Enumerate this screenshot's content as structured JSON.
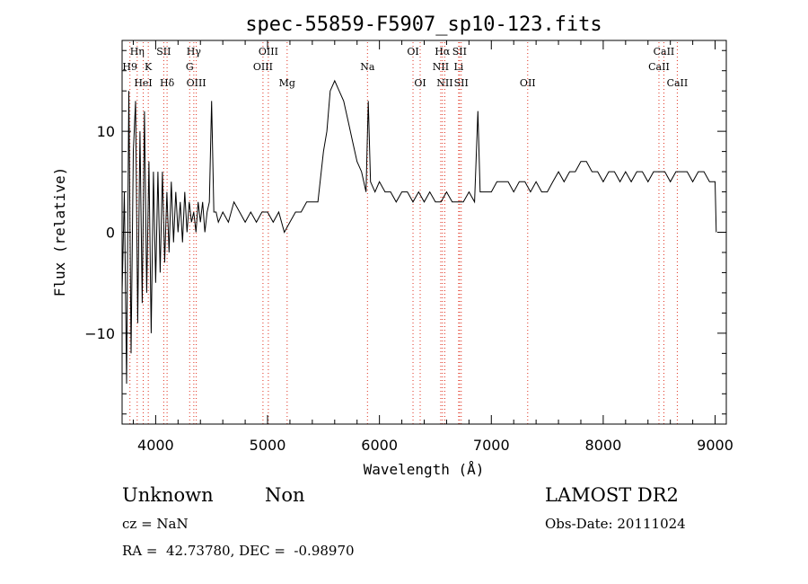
{
  "chart_data": {
    "type": "line",
    "title": "spec-55859-F5907_sp10-123.fits",
    "xlabel": "Wavelength (Å)",
    "ylabel": "Flux (relative)",
    "xlim": [
      3700,
      9100
    ],
    "ylim": [
      -19,
      19
    ],
    "xticks": [
      4000,
      5000,
      6000,
      7000,
      8000,
      9000
    ],
    "yticks": [
      -10,
      0,
      10
    ],
    "grid": false,
    "line_color": "#000000",
    "marker_color": "#e0301e",
    "series": [
      {
        "x": [
          3700,
          3720,
          3740,
          3760,
          3780,
          3800,
          3820,
          3840,
          3860,
          3880,
          3900,
          3920,
          3940,
          3960,
          3980,
          4000,
          4020,
          4040,
          4060,
          4080,
          4100,
          4120,
          4140,
          4160,
          4180,
          4200,
          4220,
          4240,
          4260,
          4280,
          4300,
          4320,
          4340,
          4360,
          4380,
          4400,
          4420,
          4440,
          4460,
          4480,
          4500,
          4520,
          4540,
          4560,
          4600,
          4650,
          4700,
          4750,
          4800,
          4850,
          4900,
          4950,
          5000,
          5050,
          5100,
          5150,
          5200,
          5250,
          5300,
          5350,
          5400,
          5450,
          5500,
          5530,
          5560,
          5600,
          5640,
          5680,
          5720,
          5760,
          5800,
          5840,
          5880,
          5900,
          5920,
          5960,
          6000,
          6050,
          6100,
          6150,
          6200,
          6250,
          6300,
          6350,
          6400,
          6450,
          6500,
          6550,
          6600,
          6650,
          6700,
          6750,
          6800,
          6850,
          6880,
          6900,
          6950,
          7000,
          7050,
          7100,
          7150,
          7200,
          7250,
          7300,
          7350,
          7400,
          7450,
          7500,
          7550,
          7600,
          7650,
          7700,
          7750,
          7800,
          7850,
          7900,
          7950,
          8000,
          8050,
          8100,
          8150,
          8200,
          8250,
          8300,
          8350,
          8400,
          8450,
          8500,
          8550,
          8600,
          8650,
          8700,
          8750,
          8800,
          8850,
          8900,
          8950,
          9000,
          9010
        ],
        "y": [
          -6,
          4,
          -15,
          14,
          -12,
          8,
          13,
          -9,
          10,
          -7,
          12,
          -6,
          7,
          -10,
          6,
          -5,
          6,
          -4,
          6,
          -3,
          4,
          -2,
          5,
          -1,
          4,
          0,
          3,
          -1,
          4,
          0,
          3,
          1,
          2,
          0,
          3,
          1,
          3,
          0,
          2,
          3,
          13,
          2,
          2,
          1,
          2,
          1,
          3,
          2,
          1,
          2,
          1,
          2,
          2,
          1,
          2,
          0,
          1,
          2,
          2,
          3,
          3,
          3,
          8,
          10,
          14,
          15,
          14,
          13,
          11,
          9,
          7,
          6,
          4,
          13,
          5,
          4,
          5,
          4,
          4,
          3,
          4,
          4,
          3,
          4,
          3,
          4,
          3,
          3,
          4,
          3,
          3,
          3,
          4,
          3,
          12,
          4,
          4,
          4,
          5,
          5,
          5,
          4,
          5,
          5,
          4,
          5,
          4,
          4,
          5,
          6,
          5,
          6,
          6,
          7,
          7,
          6,
          6,
          5,
          6,
          6,
          5,
          6,
          5,
          6,
          6,
          5,
          6,
          6,
          6,
          5,
          6,
          6,
          6,
          5,
          6,
          6,
          5,
          5,
          0
        ]
      }
    ],
    "lines": [
      {
        "label": "Hη",
        "wave": 3835,
        "row": 0
      },
      {
        "label": "H9",
        "wave": 3770,
        "row": 1
      },
      {
        "label": "HeI",
        "wave": 3889,
        "row": 2
      },
      {
        "label": "K",
        "wave": 3934,
        "row": 1
      },
      {
        "label": "SII",
        "wave": 4072,
        "row": 0
      },
      {
        "label": "Hδ",
        "wave": 4102,
        "row": 2
      },
      {
        "label": "Hγ",
        "wave": 4341,
        "row": 0
      },
      {
        "label": "G",
        "wave": 4304,
        "row": 1
      },
      {
        "label": "OIII",
        "wave": 4363,
        "row": 2
      },
      {
        "label": "OIII",
        "wave": 5007,
        "row": 0
      },
      {
        "label": "OIII",
        "wave": 4959,
        "row": 1
      },
      {
        "label": "Mg",
        "wave": 5175,
        "row": 2
      },
      {
        "label": "Na",
        "wave": 5893,
        "row": 1
      },
      {
        "label": "OI",
        "wave": 6300,
        "row": 0
      },
      {
        "label": "OI",
        "wave": 6364,
        "row": 2
      },
      {
        "label": "Hα",
        "wave": 6563,
        "row": 0
      },
      {
        "label": "NII",
        "wave": 6548,
        "row": 1
      },
      {
        "label": "NII",
        "wave": 6584,
        "row": 2
      },
      {
        "label": "SII",
        "wave": 6716,
        "row": 0
      },
      {
        "label": "Li",
        "wave": 6708,
        "row": 1
      },
      {
        "label": "SII",
        "wave": 6731,
        "row": 2
      },
      {
        "label": "OII",
        "wave": 7325,
        "row": 2
      },
      {
        "label": "CaII",
        "wave": 8542,
        "row": 0
      },
      {
        "label": "CaII",
        "wave": 8498,
        "row": 1
      },
      {
        "label": "CaII",
        "wave": 8662,
        "row": 2
      }
    ]
  },
  "footer": {
    "classification": "Unknown",
    "subclass": "Non",
    "cz": "cz = NaN",
    "coords": "RA =  42.73780, DEC =  -0.98970",
    "survey": "LAMOST DR2",
    "obsdate": "Obs-Date: 20111024"
  }
}
